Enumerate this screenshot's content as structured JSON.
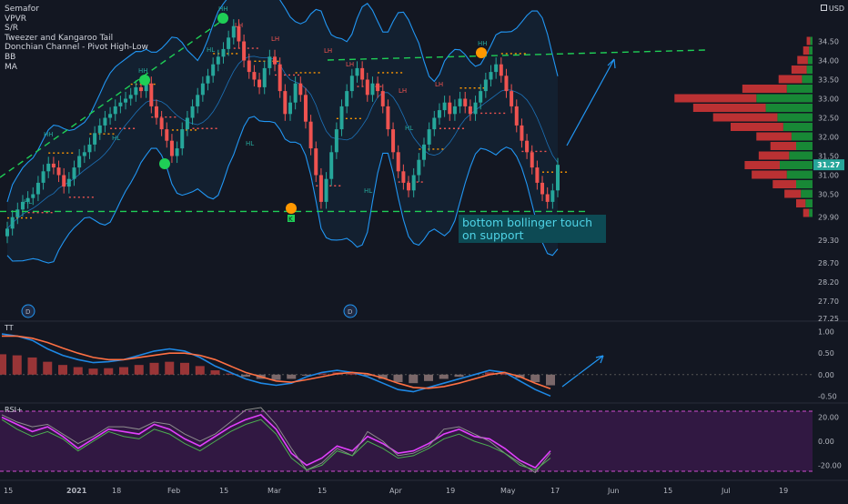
{
  "indicators": [
    "Semafor",
    "VPVR",
    "S/R",
    "Tweezer and Kangaroo Tail",
    "Donchian Channel - Pivot High-Low",
    "BB",
    "MA"
  ],
  "currency": "USD",
  "last_price": "31.27",
  "annotation": [
    "bottom bollinger touch",
    "on support"
  ],
  "pivot_labels": {
    "hh": "HH",
    "lh": "LH",
    "hl": "HL",
    "l": "L",
    "k": "K",
    "d": "D"
  },
  "panes": {
    "tt": "TT",
    "rsi": "RSI+"
  },
  "colors": {
    "bg": "#131722",
    "up": "#26a69a",
    "down": "#ef5350",
    "bb": "#2196f3",
    "support": "#1fcf56",
    "note_bg": "#0d4a54",
    "note_fg": "#4fd3e6",
    "grid": "#2a2e39",
    "orange": "#ff9800",
    "magenta": "#e040fb",
    "vp_up": "#1a9c3a",
    "vp_down": "#d93636"
  },
  "chart_data": [
    {
      "type": "candlestick",
      "ylim": [
        27.25,
        35.25
      ],
      "y_ticks": [
        "34.50",
        "34.00",
        "33.50",
        "33.00",
        "32.50",
        "32.00",
        "31.50",
        "31.00",
        "30.50",
        "29.90",
        "29.30",
        "28.70",
        "28.20",
        "27.70",
        "27.25"
      ],
      "y_tick_values": [
        34.5,
        34.0,
        33.5,
        33.0,
        32.5,
        32.0,
        31.5,
        31.0,
        30.5,
        29.9,
        29.3,
        28.7,
        28.2,
        27.7,
        27.25
      ],
      "x_ticks": [
        "15",
        "2021",
        "18",
        "Feb",
        "15",
        "Mar",
        "15",
        "Apr",
        "19",
        "May",
        "17",
        "Jun",
        "15",
        "Jul",
        "19"
      ],
      "support_level": 30.05,
      "upper_trendline": [
        34.32,
        33.5
      ],
      "closes": [
        29.6,
        29.9,
        30.1,
        30.3,
        30.4,
        30.5,
        30.8,
        31.1,
        31.3,
        31.2,
        31.0,
        30.7,
        30.9,
        31.2,
        31.5,
        31.6,
        31.8,
        32.1,
        32.3,
        32.5,
        32.6,
        32.8,
        32.9,
        33.0,
        33.1,
        33.3,
        33.2,
        33.4,
        32.8,
        32.5,
        32.2,
        31.9,
        31.5,
        31.7,
        32.2,
        32.5,
        32.8,
        33.1,
        33.4,
        33.6,
        33.9,
        34.1,
        34.3,
        34.6,
        34.9,
        34.5,
        34.0,
        33.7,
        33.5,
        33.3,
        33.8,
        34.1,
        33.9,
        33.2,
        32.6,
        32.9,
        33.4,
        33.1,
        32.4,
        31.7,
        31.0,
        30.3,
        30.9,
        31.6,
        32.2,
        32.8,
        33.2,
        33.6,
        33.8,
        33.5,
        33.1,
        33.4,
        33.2,
        32.8,
        32.2,
        31.6,
        31.1,
        30.8,
        30.6,
        31.0,
        31.4,
        31.8,
        32.2,
        32.5,
        32.7,
        32.9,
        32.6,
        32.8,
        33.0,
        32.8,
        32.6,
        32.9,
        33.2,
        33.5,
        33.7,
        33.9,
        33.6,
        33.2,
        32.8,
        32.3,
        31.9,
        31.6,
        31.2,
        30.8,
        30.5,
        30.3,
        30.6,
        31.27
      ],
      "volume_profile": [
        {
          "price": 34.5,
          "up": 2,
          "down": 3
        },
        {
          "price": 34.25,
          "up": 3,
          "down": 5
        },
        {
          "price": 34.0,
          "up": 4,
          "down": 9
        },
        {
          "price": 33.75,
          "up": 5,
          "down": 13
        },
        {
          "price": 33.5,
          "up": 9,
          "down": 20
        },
        {
          "price": 33.25,
          "up": 22,
          "down": 38
        },
        {
          "price": 33.0,
          "up": 48,
          "down": 70
        },
        {
          "price": 32.75,
          "up": 40,
          "down": 62
        },
        {
          "price": 32.5,
          "up": 30,
          "down": 55
        },
        {
          "price": 32.25,
          "up": 25,
          "down": 45
        },
        {
          "price": 32.0,
          "up": 18,
          "down": 30
        },
        {
          "price": 31.75,
          "up": 14,
          "down": 22
        },
        {
          "price": 31.5,
          "up": 20,
          "down": 26
        },
        {
          "price": 31.25,
          "up": 28,
          "down": 30
        },
        {
          "price": 31.0,
          "up": 22,
          "down": 30
        },
        {
          "price": 30.75,
          "up": 14,
          "down": 20
        },
        {
          "price": 30.5,
          "up": 10,
          "down": 14
        },
        {
          "price": 30.25,
          "up": 6,
          "down": 8
        },
        {
          "price": 30.0,
          "up": 3,
          "down": 5
        }
      ]
    },
    {
      "type": "line",
      "name": "TT",
      "ylim": [
        -0.6,
        1.1
      ],
      "y_ticks": [
        "1.00",
        "0.50",
        "0.00",
        "-0.50"
      ],
      "y_tick_values": [
        1.0,
        0.5,
        0.0,
        -0.5
      ],
      "series": [
        {
          "values": [
            0.95,
            0.9,
            0.8,
            0.6,
            0.45,
            0.35,
            0.28,
            0.3,
            0.35,
            0.45,
            0.55,
            0.6,
            0.55,
            0.4,
            0.2,
            0.05,
            -0.1,
            -0.2,
            -0.25,
            -0.2,
            -0.05,
            0.05,
            0.1,
            0.05,
            -0.05,
            -0.2,
            -0.35,
            -0.4,
            -0.3,
            -0.2,
            -0.1,
            0.0,
            0.1,
            0.05,
            -0.15,
            -0.35,
            -0.5
          ]
        },
        {
          "values": [
            0.9,
            0.9,
            0.85,
            0.75,
            0.62,
            0.5,
            0.4,
            0.35,
            0.35,
            0.4,
            0.45,
            0.5,
            0.5,
            0.45,
            0.35,
            0.2,
            0.05,
            -0.05,
            -0.15,
            -0.18,
            -0.12,
            -0.05,
            0.02,
            0.05,
            0.02,
            -0.08,
            -0.2,
            -0.3,
            -0.32,
            -0.28,
            -0.2,
            -0.1,
            0.0,
            0.05,
            -0.05,
            -0.2,
            -0.33
          ]
        }
      ]
    },
    {
      "type": "line",
      "name": "RSI+",
      "ylim": [
        -28,
        28
      ],
      "y_ticks": [
        "20.00",
        "0.00",
        "-20.00"
      ],
      "y_tick_values": [
        20,
        0,
        -20
      ],
      "overbought": 25,
      "oversold": -25,
      "series": [
        {
          "values": [
            20,
            14,
            8,
            12,
            4,
            -6,
            2,
            10,
            8,
            6,
            14,
            10,
            2,
            -4,
            4,
            12,
            18,
            22,
            10,
            -10,
            -20,
            -14,
            -4,
            -8,
            4,
            -2,
            -10,
            -8,
            -2,
            6,
            10,
            4,
            2,
            -6,
            -16,
            -22,
            -8
          ]
        },
        {
          "values": [
            22,
            16,
            12,
            14,
            6,
            -2,
            4,
            12,
            12,
            10,
            16,
            14,
            6,
            0,
            6,
            16,
            26,
            28,
            14,
            -6,
            -24,
            -18,
            -6,
            -12,
            8,
            0,
            -12,
            -10,
            -4,
            10,
            12,
            6,
            0,
            -10,
            -18,
            -26,
            -10
          ]
        },
        {
          "values": [
            18,
            10,
            4,
            8,
            2,
            -8,
            0,
            8,
            4,
            2,
            10,
            6,
            -2,
            -8,
            0,
            8,
            14,
            18,
            6,
            -14,
            -24,
            -20,
            -8,
            -12,
            0,
            -6,
            -14,
            -12,
            -6,
            2,
            6,
            0,
            -4,
            -10,
            -20,
            -24,
            -14
          ]
        }
      ]
    }
  ]
}
